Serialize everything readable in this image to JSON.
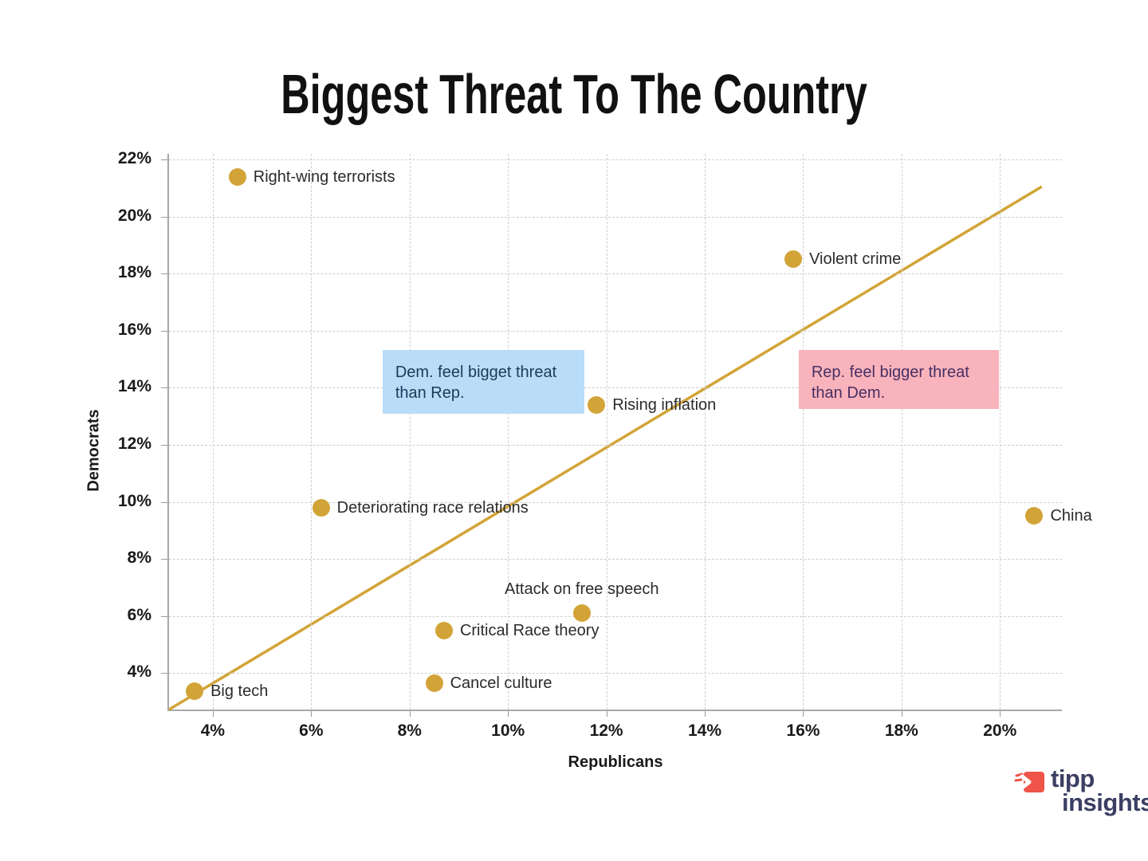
{
  "title": "Biggest Threat To The Country",
  "chart_data": {
    "type": "scatter",
    "title": "Biggest Threat To The Country",
    "xlabel": "Republicans",
    "ylabel": "Democrats",
    "xlim": [
      3.11,
      21.26
    ],
    "ylim": [
      2.72,
      22.2
    ],
    "grid": true,
    "grid_style": "dashed",
    "point_color": "#d2a437",
    "line_color": "#d2a437",
    "x_ticks": [
      {
        "v": 4,
        "label": "4%"
      },
      {
        "v": 6,
        "label": "6%"
      },
      {
        "v": 8,
        "label": "8%"
      },
      {
        "v": 10,
        "label": "10%"
      },
      {
        "v": 12,
        "label": "12%"
      },
      {
        "v": 14,
        "label": "14%"
      },
      {
        "v": 16,
        "label": "16%"
      },
      {
        "v": 18,
        "label": "18%"
      },
      {
        "v": 20,
        "label": "20%"
      }
    ],
    "y_ticks": [
      {
        "v": 4,
        "label": "4%"
      },
      {
        "v": 6,
        "label": "6%"
      },
      {
        "v": 8,
        "label": "8%"
      },
      {
        "v": 10,
        "label": "10%"
      },
      {
        "v": 12,
        "label": "12%"
      },
      {
        "v": 14,
        "label": "14%"
      },
      {
        "v": 16,
        "label": "16%"
      },
      {
        "v": 18,
        "label": "18%"
      },
      {
        "v": 20,
        "label": "20%"
      },
      {
        "v": 22,
        "label": "22%"
      }
    ],
    "points": [
      {
        "label": "Right-wing terrorists",
        "x": 4.5,
        "y": 21.4,
        "label_pos": "right"
      },
      {
        "label": "Violent crime",
        "x": 15.8,
        "y": 18.5,
        "label_pos": "right"
      },
      {
        "label": "Rising inflation",
        "x": 11.8,
        "y": 13.4,
        "label_pos": "right"
      },
      {
        "label": "Deteriorating race relations",
        "x": 6.2,
        "y": 9.8,
        "label_pos": "right"
      },
      {
        "label": "China",
        "x": 20.7,
        "y": 9.5,
        "label_pos": "right"
      },
      {
        "label": "Attack on free speech",
        "x": 11.5,
        "y": 6.1,
        "label_pos": "above"
      },
      {
        "label": "Critical Race theory",
        "x": 8.7,
        "y": 5.5,
        "label_pos": "right"
      },
      {
        "label": "Cancel culture",
        "x": 8.5,
        "y": 3.65,
        "label_pos": "right"
      },
      {
        "label": "Big tech",
        "x": 3.63,
        "y": 3.35,
        "label_pos": "right"
      }
    ],
    "identity_line": {
      "x1": 3.11,
      "y1": 2.72,
      "x2": 20.85,
      "y2": 21.05
    },
    "annotations": [
      {
        "id": "dem",
        "text": "Dem. feel bigget threat\nthan Rep.",
        "bg": "#b9dcf9",
        "color": "#1b3a57",
        "x0": 7.45,
        "x1": 11.55,
        "y0": 13.08,
        "y1": 15.33
      },
      {
        "id": "rep",
        "text": "Rep. feel bigger threat\nthan Dem.",
        "bg": "#f9b3bc",
        "color": "#472f63",
        "x0": 15.91,
        "x1": 19.98,
        "y0": 13.25,
        "y1": 15.33
      }
    ]
  },
  "logo": {
    "line1": "tipp",
    "line2": "insights"
  }
}
